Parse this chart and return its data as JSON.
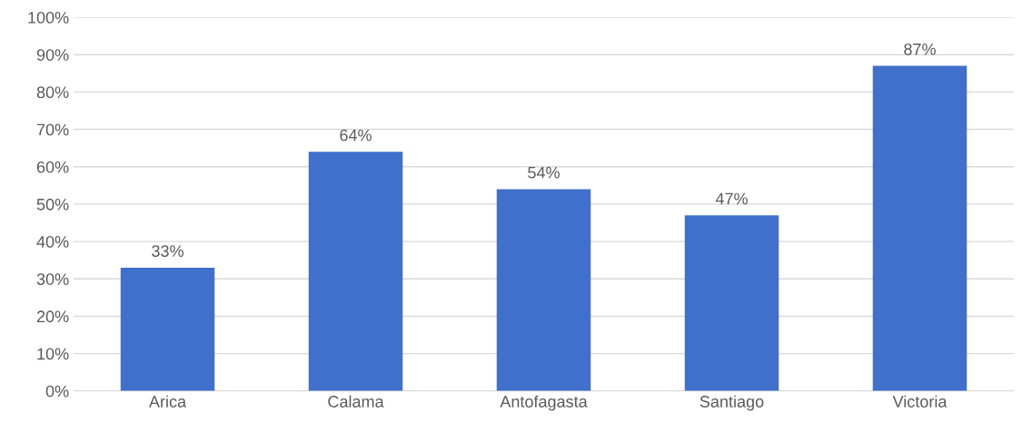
{
  "chart_data": {
    "type": "bar",
    "categories": [
      "Arica",
      "Calama",
      "Antofagasta",
      "Santiago",
      "Victoria"
    ],
    "values": [
      33,
      64,
      54,
      47,
      87
    ],
    "value_labels": [
      "33%",
      "64%",
      "54%",
      "47%",
      "87%"
    ],
    "color": "#4070cc",
    "ylim": [
      0,
      100
    ],
    "yticks": [
      {
        "value": 0,
        "label": "0%"
      },
      {
        "value": 10,
        "label": "10%"
      },
      {
        "value": 20,
        "label": "20%"
      },
      {
        "value": 30,
        "label": "30%"
      },
      {
        "value": 40,
        "label": "40%"
      },
      {
        "value": 50,
        "label": "50%"
      },
      {
        "value": 60,
        "label": "60%"
      },
      {
        "value": 70,
        "label": "70%"
      },
      {
        "value": 80,
        "label": "80%"
      },
      {
        "value": 90,
        "label": "90%"
      },
      {
        "value": 100,
        "label": "100%"
      }
    ],
    "grid": "y"
  }
}
